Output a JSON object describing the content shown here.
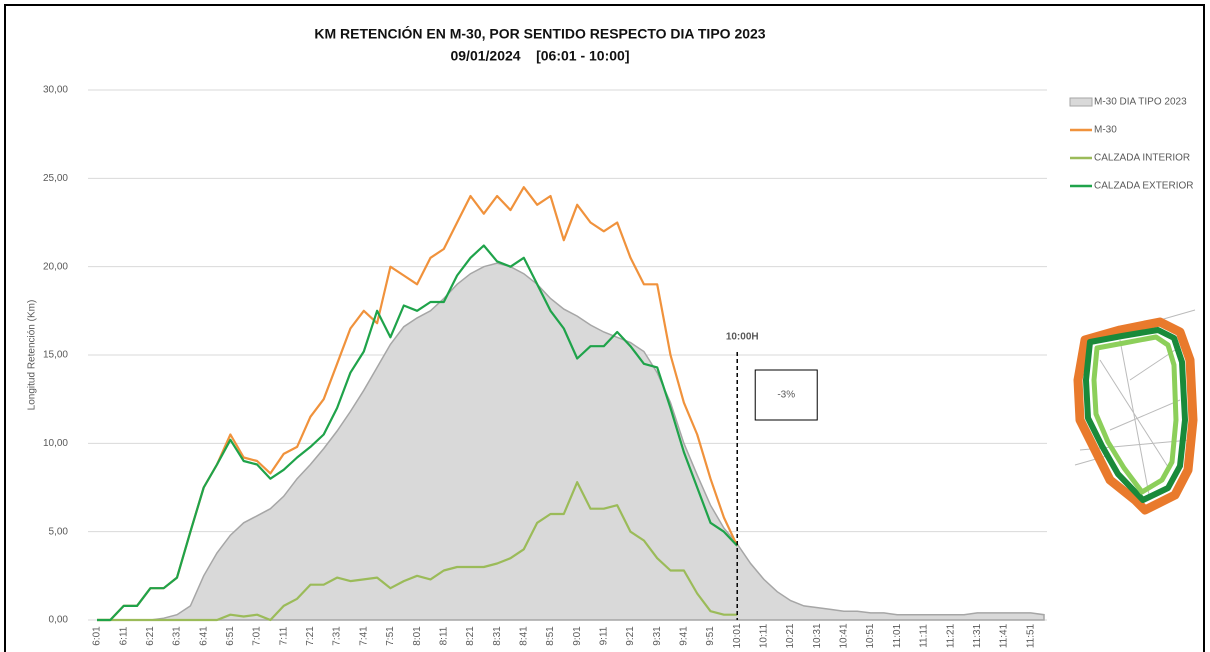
{
  "chart_data": {
    "type": "line",
    "title": "KM RETENCIÓN EN M-30, POR SENTIDO RESPECTO DIA TIPO 2023",
    "subtitle": "09/01/2024    [06:01 - 10:00]",
    "y_label": "Longitud Retención (Km)",
    "annotations": [
      "10:00H",
      "-3%"
    ],
    "categories": [
      "6:01",
      null,
      "6:11",
      null,
      "6:21",
      null,
      "6:31",
      null,
      "6:41",
      null,
      "6:51",
      null,
      "7:01",
      null,
      "7:11",
      null,
      "7:21",
      null,
      "7:31",
      null,
      "7:41",
      null,
      "7:51",
      null,
      "8:01",
      null,
      "8:11",
      null,
      "8:21",
      null,
      "8:31",
      null,
      "8:41",
      null,
      "8:51",
      null,
      "9:01",
      null,
      "9:11",
      null,
      "9:21",
      null,
      "9:31",
      null,
      "9:41",
      null,
      "9:51",
      null,
      "10:01",
      null,
      "10:11",
      null,
      "10:21",
      null,
      "10:31",
      null,
      "10:41",
      null,
      "10:51",
      null,
      "11:01",
      null,
      "11:11",
      null,
      "11:21",
      null,
      "11:31",
      null,
      "11:41",
      null,
      "11:51",
      null
    ],
    "series": [
      {
        "name": "M-30 DIA TIPO 2023",
        "type": "area",
        "color": "#d9d9d9",
        "values": [
          0,
          0,
          0,
          0,
          0,
          0.1,
          0.3,
          0.8,
          2.5,
          3.8,
          4.8,
          5.5,
          5.9,
          6.3,
          7.0,
          8.0,
          8.8,
          9.7,
          10.7,
          11.8,
          13.0,
          14.3,
          15.6,
          16.6,
          17.1,
          17.5,
          18.2,
          19.0,
          19.6,
          20.0,
          20.2,
          20.0,
          19.6,
          19.0,
          18.2,
          17.6,
          17.2,
          16.7,
          16.3,
          16.0,
          15.7,
          15.2,
          14.0,
          12.3,
          10.0,
          8.2,
          6.5,
          5.2,
          4.3,
          3.2,
          2.3,
          1.6,
          1.1,
          0.8,
          0.7,
          0.6,
          0.5,
          0.5,
          0.4,
          0.4,
          0.3,
          0.3,
          0.3,
          0.3,
          0.3,
          0.3,
          0.4,
          0.4,
          0.4,
          0.4,
          0.4,
          0.3
        ]
      },
      {
        "name": "M-30",
        "type": "line",
        "color": "#f0923c",
        "values": [
          0,
          0,
          0.8,
          0.8,
          1.8,
          1.8,
          2.4,
          5.0,
          7.5,
          8.8,
          10.5,
          9.2,
          9.0,
          8.3,
          9.4,
          9.8,
          11.5,
          12.5,
          14.5,
          16.5,
          17.5,
          16.8,
          20.0,
          19.5,
          19.0,
          20.5,
          21.0,
          22.5,
          24.0,
          23.0,
          24.0,
          23.2,
          24.5,
          23.5,
          24.0,
          21.5,
          23.5,
          22.5,
          22.0,
          22.5,
          20.5,
          19.0,
          19.0,
          15.0,
          12.3,
          10.5,
          8.0,
          5.8,
          4.2,
          null,
          null,
          null,
          null,
          null,
          null,
          null,
          null,
          null,
          null,
          null,
          null,
          null,
          null,
          null,
          null,
          null,
          null,
          null,
          null,
          null,
          null,
          null
        ]
      },
      {
        "name": "CALZADA INTERIOR",
        "type": "line",
        "color": "#9bbb59",
        "values": [
          0,
          0,
          0,
          0,
          0,
          0,
          0,
          0,
          0,
          0,
          0.3,
          0.2,
          0.3,
          0,
          0.8,
          1.2,
          2.0,
          2.0,
          2.4,
          2.2,
          2.3,
          2.4,
          1.8,
          2.2,
          2.5,
          2.3,
          2.8,
          3.0,
          3.0,
          3.0,
          3.2,
          3.5,
          4.0,
          5.5,
          6.0,
          6.0,
          7.8,
          6.3,
          6.3,
          6.5,
          5.0,
          4.5,
          3.5,
          2.8,
          2.8,
          1.5,
          0.5,
          0.3,
          0.3,
          null,
          null,
          null,
          null,
          null,
          null,
          null,
          null,
          null,
          null,
          null,
          null,
          null,
          null,
          null,
          null,
          null,
          null,
          null,
          null,
          null,
          null,
          null
        ]
      },
      {
        "name": "CALZADA EXTERIOR",
        "type": "line",
        "color": "#1fa34a",
        "values": [
          0,
          0,
          0.8,
          0.8,
          1.8,
          1.8,
          2.4,
          5.0,
          7.5,
          8.8,
          10.2,
          9.0,
          8.8,
          8.0,
          8.5,
          9.2,
          9.8,
          10.5,
          12.0,
          14.0,
          15.2,
          17.5,
          16.0,
          17.8,
          17.5,
          18.0,
          18.0,
          19.5,
          20.5,
          21.2,
          20.3,
          20.0,
          20.5,
          19.0,
          17.5,
          16.5,
          14.8,
          15.5,
          15.5,
          16.3,
          15.5,
          14.5,
          14.3,
          12.0,
          9.5,
          7.5,
          5.5,
          5.0,
          4.2,
          null,
          null,
          null,
          null,
          null,
          null,
          null,
          null,
          null,
          null,
          null,
          null,
          null,
          null,
          null,
          null,
          null,
          null,
          null,
          null,
          null,
          null,
          null
        ]
      }
    ],
    "ylim": [
      0,
      30
    ],
    "yticks": [
      {
        "value": 0,
        "label": "0,00"
      },
      {
        "value": 5,
        "label": "5,00"
      },
      {
        "value": 10,
        "label": "10,00"
      },
      {
        "value": 15,
        "label": "15,00"
      },
      {
        "value": 20,
        "label": "20,00"
      },
      {
        "value": 25,
        "label": "25,00"
      },
      {
        "value": 30,
        "label": "30,00"
      }
    ],
    "grid": true,
    "legend": "right"
  }
}
